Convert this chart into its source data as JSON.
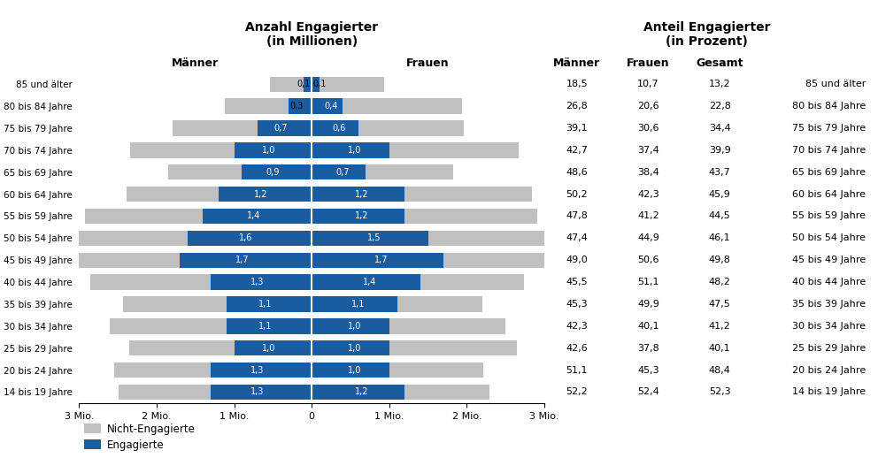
{
  "age_groups": [
    "85 und älter",
    "80 bis 84 Jahre",
    "75 bis 79 Jahre",
    "70 bis 74 Jahre",
    "65 bis 69 Jahre",
    "60 bis 64 Jahre",
    "55 bis 59 Jahre",
    "50 bis 54 Jahre",
    "45 bis 49 Jahre",
    "40 bis 44 Jahre",
    "35 bis 39 Jahre",
    "30 bis 34 Jahre",
    "25 bis 29 Jahre",
    "20 bis 24 Jahre",
    "14 bis 19 Jahre"
  ],
  "men_engaged": [
    0.1,
    0.3,
    0.7,
    1.0,
    0.9,
    1.2,
    1.4,
    1.6,
    1.7,
    1.3,
    1.1,
    1.1,
    1.0,
    1.3,
    1.3
  ],
  "women_engaged": [
    0.1,
    0.4,
    0.6,
    1.0,
    0.7,
    1.2,
    1.2,
    1.5,
    1.7,
    1.4,
    1.1,
    1.0,
    1.0,
    1.0,
    1.2
  ],
  "pct_men": [
    18.5,
    26.8,
    39.1,
    42.7,
    48.6,
    50.2,
    47.8,
    47.4,
    49.0,
    45.5,
    45.3,
    42.3,
    42.6,
    51.1,
    52.2
  ],
  "pct_women": [
    10.7,
    20.6,
    30.6,
    37.4,
    38.4,
    42.3,
    41.2,
    44.9,
    50.6,
    51.1,
    49.9,
    40.1,
    37.8,
    45.3,
    52.4
  ],
  "pct_total": [
    13.2,
    22.8,
    34.4,
    39.9,
    43.7,
    45.9,
    44.5,
    46.1,
    49.8,
    48.2,
    47.5,
    41.2,
    40.1,
    48.4,
    52.3
  ],
  "color_engaged": "#1a5ca0",
  "color_not_engaged": "#c0c0c0",
  "xlim": 3.0,
  "title_left": "Anzahl Engagierter\n(in Millionen)",
  "title_right": "Anteil Engagierter\n(in Prozent)",
  "legend_not_engaged": "Nicht-Engagierte",
  "legend_engaged": "Engagierte",
  "xtick_labels": [
    "3 Mio.",
    "2 Mio.",
    "1 Mio.",
    "0",
    "1 Mio.",
    "2 Mio.",
    "3 Mio."
  ],
  "xtick_vals": [
    -3,
    -2,
    -1,
    0,
    1,
    2,
    3
  ],
  "header_maenner": "Männer",
  "header_frauen": "Frauen",
  "header_gesamt": "Gesamt"
}
